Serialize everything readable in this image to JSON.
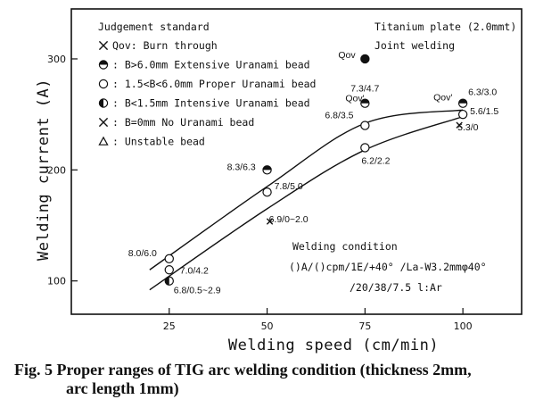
{
  "chart_data": {
    "type": "scatter",
    "xlabel": "Welding speed (cm/min)",
    "ylabel": "Welding current (A)",
    "xlim": [
      0,
      115
    ],
    "ylim": [
      70,
      345
    ],
    "x_ticks": [
      25,
      50,
      75,
      100
    ],
    "y_ticks": [
      100,
      200,
      300
    ],
    "grid": false,
    "legend_title": "Judgement standard",
    "legend": [
      {
        "symbol": "x",
        "label": "Qov: Burn through"
      },
      {
        "symbol": "half-top",
        "label": ": B>6.0mm  Extensive Uranami bead"
      },
      {
        "symbol": "open",
        "label": ": 1.5<B<6.0mm  Proper Uranami bead"
      },
      {
        "symbol": "half-left",
        "label": ": B<1.5mm  Intensive Uranami bead"
      },
      {
        "symbol": "x",
        "label": ": B=0mm  No Uranami bead"
      },
      {
        "symbol": "triangle",
        "label": ": Unstable bead"
      }
    ],
    "notes": [
      "Titanium plate (2.0mmt)",
      "Joint welding"
    ],
    "condition": {
      "title": "Welding condition",
      "line1": "()A/()cpm/1E/+40°  /La-W3.2mmφ40°",
      "line2": "/20/38/7.5 l:Ar"
    },
    "points": [
      {
        "x": 75,
        "y": 300,
        "symbol": "filled",
        "label": "Qov"
      },
      {
        "x": 75,
        "y": 260,
        "symbol": "half-top",
        "label": "7.3/4.7",
        "label2": "Qov'"
      },
      {
        "x": 75,
        "y": 240,
        "symbol": "open",
        "label": "6.8/3.5"
      },
      {
        "x": 75,
        "y": 220,
        "symbol": "open",
        "label": "6.2/2.2"
      },
      {
        "x": 100,
        "y": 260,
        "symbol": "half-top",
        "label": "6.3/3.0",
        "label2": "Qov'"
      },
      {
        "x": 100,
        "y": 250,
        "symbol": "open",
        "label": "5.6/1.5"
      },
      {
        "x": 100,
        "y": 250,
        "symbol": "x",
        "label": "5.3/0"
      },
      {
        "x": 50,
        "y": 200,
        "symbol": "half-top",
        "label": "8.3/6.3"
      },
      {
        "x": 50,
        "y": 180,
        "symbol": "open",
        "label": "7.8/5.0"
      },
      {
        "x": 50,
        "y": 160,
        "symbol": "x",
        "label": "6.9/0~2.0"
      },
      {
        "x": 25,
        "y": 120,
        "symbol": "open",
        "label": "8.0/6.0"
      },
      {
        "x": 25,
        "y": 110,
        "symbol": "open",
        "label": "7.0/4.2"
      },
      {
        "x": 25,
        "y": 100,
        "symbol": "half-left",
        "label": "6.8/0.5~2.9"
      }
    ],
    "curves": [
      {
        "name": "upper limit",
        "x": [
          20,
          50,
          75,
          100
        ],
        "y": [
          110,
          185,
          242,
          254
        ]
      },
      {
        "name": "lower limit",
        "x": [
          20,
          50,
          75,
          100
        ],
        "y": [
          92,
          165,
          218,
          248
        ]
      }
    ]
  },
  "caption": {
    "line1": "Fig. 5  Proper ranges of TIG arc welding condition (thickness 2mm,",
    "line2": "arc length 1mm)"
  }
}
